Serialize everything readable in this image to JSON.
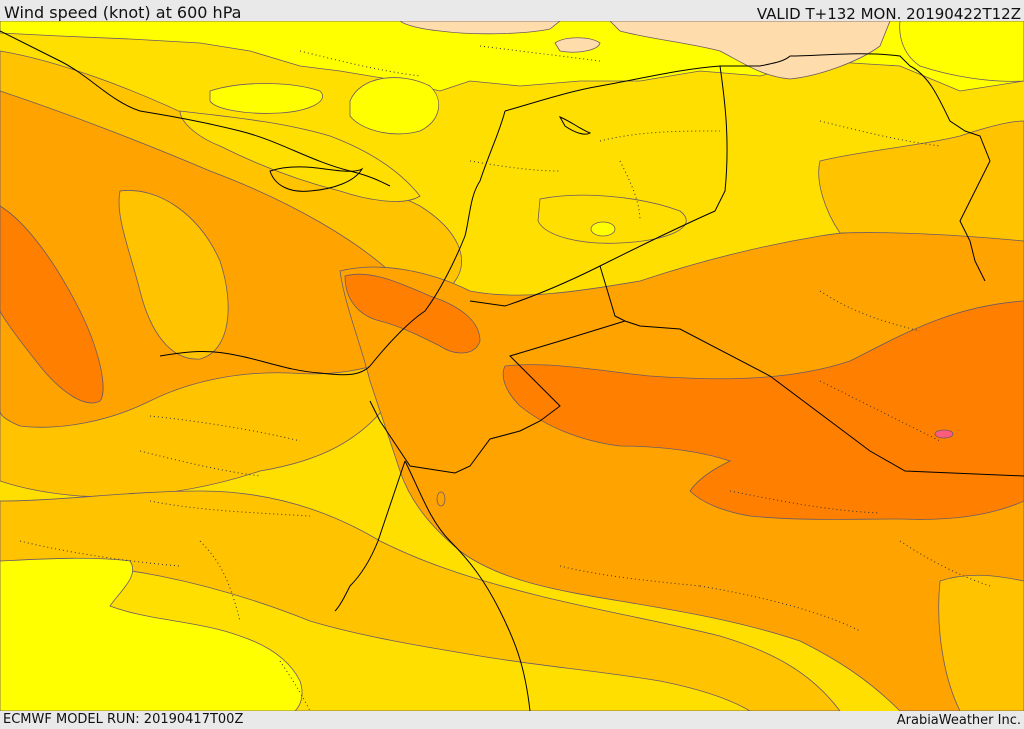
{
  "header": {
    "title": "Wind speed (knot) at 600 hPa",
    "valid": "VALID T+132 MON. 20190422T12Z"
  },
  "footer": {
    "model_run": "ECMWF MODEL RUN: 20190417T00Z",
    "credit": "ArabiaWeather Inc."
  },
  "map": {
    "field": "wind-speed",
    "palette": {
      "band_1": "#ffff00",
      "band_2": "#ffdf00",
      "band_3": "#ffc300",
      "band_4": "#ffa300",
      "band_5": "#ff8000",
      "low": "#ffdcab"
    },
    "contour_color": "#6b5a66",
    "border_color": "#000000",
    "admin_border_color": "#333333",
    "lake_color": "#ff5b7a"
  }
}
